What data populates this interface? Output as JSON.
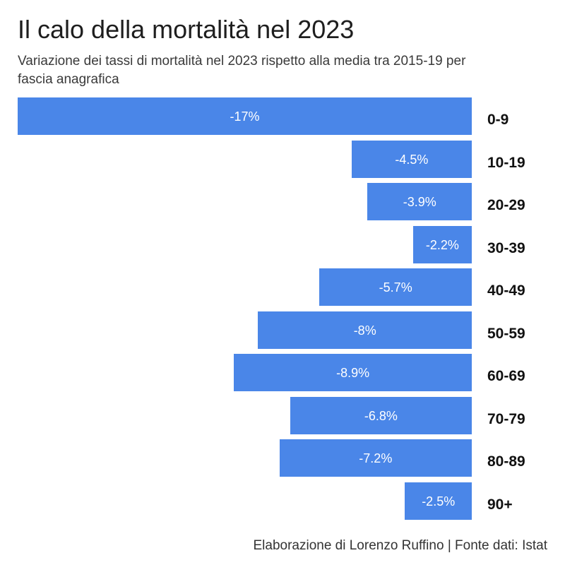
{
  "credit": "Elaborazione di Lorenzo Ruffino | Fonte dati: Istat",
  "chart_data": {
    "type": "bar",
    "orientation": "horizontal",
    "title": "Il calo della mortalità nel 2023",
    "subtitle": "Variazione dei tassi di mortalità nel 2023 rispetto alla media tra 2015-19 per fascia anagrafica",
    "categories": [
      "0-9",
      "10-19",
      "20-29",
      "30-39",
      "40-49",
      "50-59",
      "60-69",
      "70-79",
      "80-89",
      "90+"
    ],
    "values": [
      -17,
      -4.5,
      -3.9,
      -2.2,
      -5.7,
      -8,
      -8.9,
      -6.8,
      -7.2,
      -2.5
    ],
    "data_labels": [
      "-17%",
      "-4.5%",
      "-3.9%",
      "-2.2%",
      "-5.7%",
      "-8%",
      "-8.9%",
      "-6.8%",
      "-7.2%",
      "-2.5%"
    ],
    "xlim": [
      -17,
      0
    ],
    "grid": false,
    "bar_color": "#4a86e8",
    "data_label_color": "#ffffff"
  }
}
